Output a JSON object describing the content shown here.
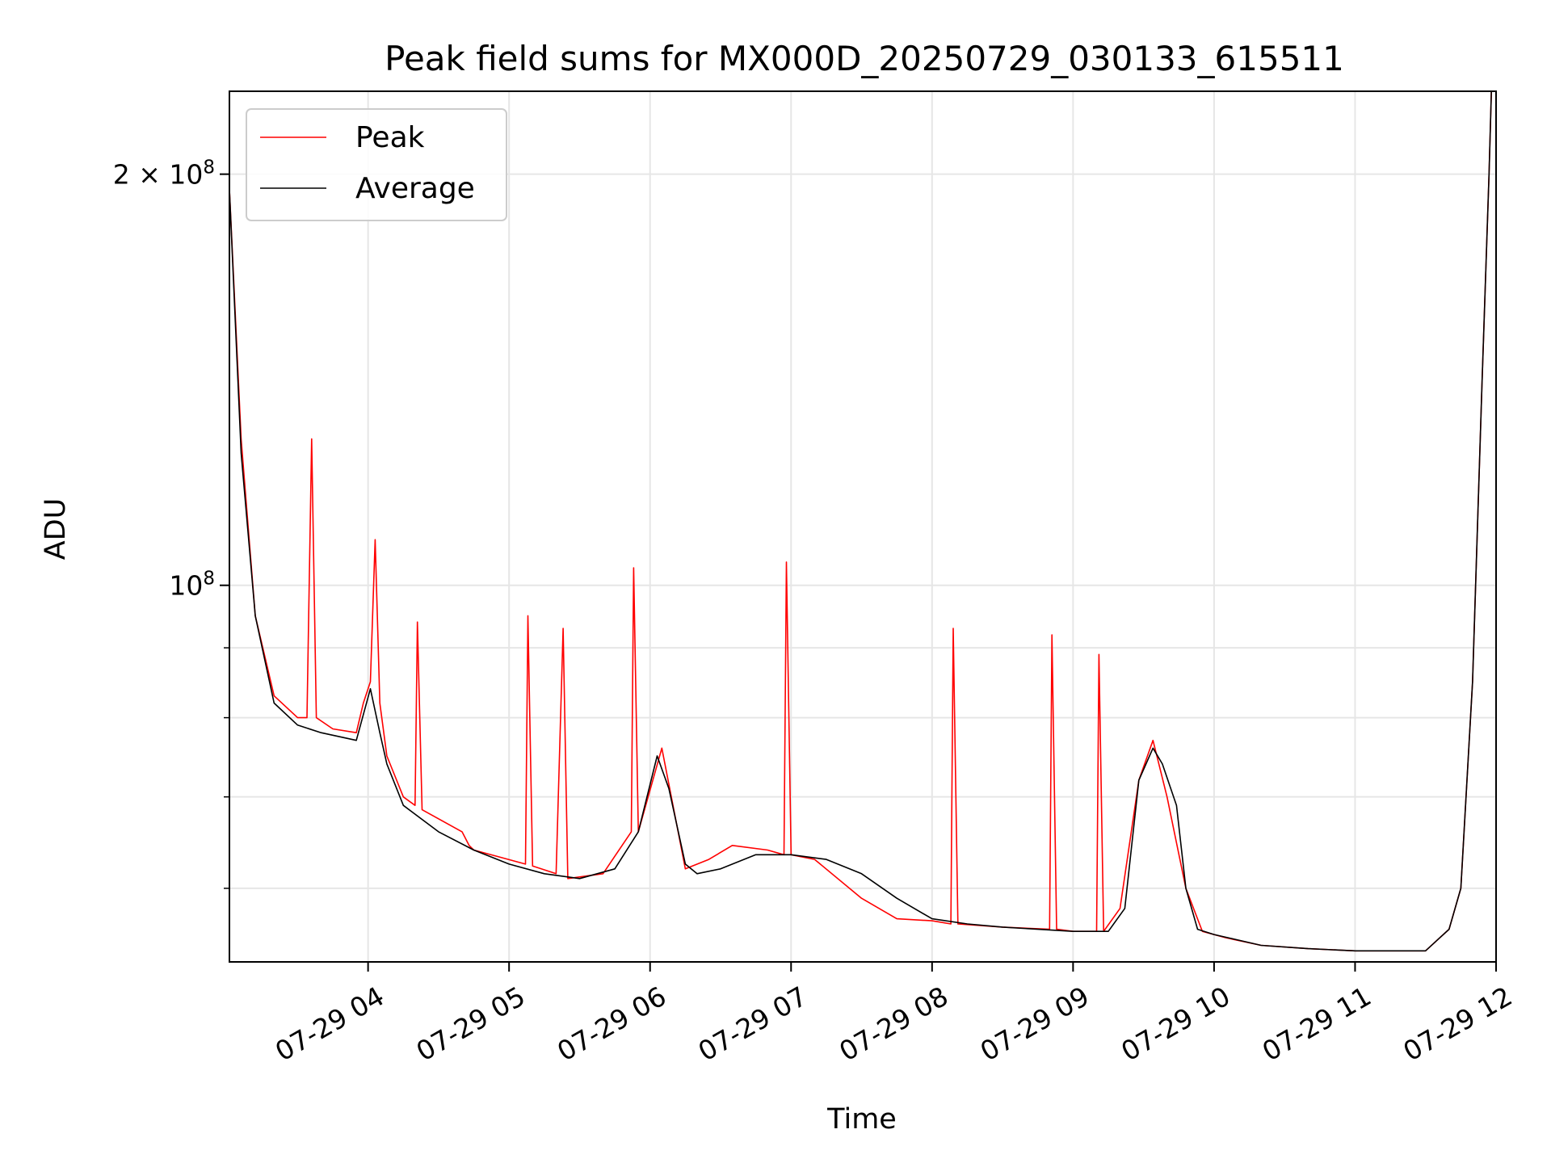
{
  "chart_data": {
    "type": "line",
    "title": "Peak field sums for MX000D_20250729_030133_615511",
    "xlabel": "Time",
    "ylabel": "ADU",
    "yscale": "log",
    "ylim": [
      53000000,
      230000000
    ],
    "xlim": [
      "2025-07-29 03:01:00",
      "2025-07-29 12:00:00"
    ],
    "grid": true,
    "legend_position": "upper-left",
    "x_tick_labels": [
      "07-29 04",
      "07-29 05",
      "07-29 06",
      "07-29 07",
      "07-29 08",
      "07-29 09",
      "07-29 10",
      "07-29 11",
      "07-29 12"
    ],
    "y_tick_labels": {
      "major": [
        {
          "value": 100000000,
          "base": "10",
          "exp": "8",
          "coef": ""
        },
        {
          "value": 200000000,
          "base": "10",
          "exp": "8",
          "coef": "2 × "
        }
      ],
      "minor": [
        60000000,
        70000000,
        80000000,
        90000000
      ]
    },
    "series": [
      {
        "name": "Peak",
        "color": "#ff0000",
        "x": [
          "2025-07-29 03:01",
          "2025-07-29 03:06",
          "2025-07-29 03:12",
          "2025-07-29 03:20",
          "2025-07-29 03:30",
          "2025-07-29 03:34",
          "2025-07-29 03:36",
          "2025-07-29 03:38",
          "2025-07-29 03:45",
          "2025-07-29 03:55",
          "2025-07-29 03:58",
          "2025-07-29 04:01",
          "2025-07-29 04:03",
          "2025-07-29 04:05",
          "2025-07-29 04:08",
          "2025-07-29 04:15",
          "2025-07-29 04:20",
          "2025-07-29 04:21",
          "2025-07-29 04:23",
          "2025-07-29 04:40",
          "2025-07-29 04:43",
          "2025-07-29 04:45",
          "2025-07-29 05:07",
          "2025-07-29 05:08",
          "2025-07-29 05:10",
          "2025-07-29 05:20",
          "2025-07-29 05:23",
          "2025-07-29 05:25",
          "2025-07-29 05:40",
          "2025-07-29 05:52",
          "2025-07-29 05:53",
          "2025-07-29 05:55",
          "2025-07-29 06:05",
          "2025-07-29 06:15",
          "2025-07-29 06:25",
          "2025-07-29 06:35",
          "2025-07-29 06:50",
          "2025-07-29 06:57",
          "2025-07-29 06:58",
          "2025-07-29 07:00",
          "2025-07-29 07:10",
          "2025-07-29 07:30",
          "2025-07-29 07:45",
          "2025-07-29 08:00",
          "2025-07-29 08:08",
          "2025-07-29 08:09",
          "2025-07-29 08:11",
          "2025-07-29 08:30",
          "2025-07-29 08:50",
          "2025-07-29 08:51",
          "2025-07-29 08:53",
          "2025-07-29 09:00",
          "2025-07-29 09:10",
          "2025-07-29 09:11",
          "2025-07-29 09:13",
          "2025-07-29 09:20",
          "2025-07-29 09:28",
          "2025-07-29 09:34",
          "2025-07-29 09:40",
          "2025-07-29 09:48",
          "2025-07-29 09:55",
          "2025-07-29 10:05",
          "2025-07-29 10:20",
          "2025-07-29 10:40",
          "2025-07-29 11:00",
          "2025-07-29 11:20",
          "2025-07-29 11:30",
          "2025-07-29 11:40",
          "2025-07-29 11:45",
          "2025-07-29 11:50",
          "2025-07-29 11:54",
          "2025-07-29 11:57",
          "2025-07-29 11:58"
        ],
        "values": [
          195000000,
          128000000,
          95000000,
          83000000,
          80000000,
          80000000,
          128000000,
          80000000,
          78500000,
          78000000,
          82000000,
          85000000,
          108000000,
          82000000,
          75000000,
          70000000,
          69000000,
          94000000,
          68500000,
          66000000,
          64500000,
          64000000,
          62500000,
          95000000,
          62300000,
          61500000,
          93000000,
          61000000,
          61500000,
          66000000,
          103000000,
          66000000,
          76000000,
          62000000,
          63000000,
          64500000,
          64000000,
          63500000,
          104000000,
          63500000,
          63000000,
          59000000,
          57000000,
          56800000,
          56500000,
          93000000,
          56500000,
          56200000,
          56000000,
          92000000,
          56000000,
          55800000,
          55800000,
          89000000,
          55800000,
          58000000,
          72000000,
          77000000,
          70000000,
          60000000,
          55800000,
          55200000,
          54500000,
          54200000,
          54000000,
          54000000,
          54000000,
          56000000,
          60000000,
          85000000,
          140000000,
          200000000,
          230000000
        ]
      },
      {
        "name": "Average",
        "color": "#000000",
        "x": [
          "2025-07-29 03:01",
          "2025-07-29 03:06",
          "2025-07-29 03:12",
          "2025-07-29 03:20",
          "2025-07-29 03:30",
          "2025-07-29 03:40",
          "2025-07-29 03:55",
          "2025-07-29 04:01",
          "2025-07-29 04:05",
          "2025-07-29 04:08",
          "2025-07-29 04:15",
          "2025-07-29 04:30",
          "2025-07-29 04:45",
          "2025-07-29 05:00",
          "2025-07-29 05:15",
          "2025-07-29 05:30",
          "2025-07-29 05:45",
          "2025-07-29 05:55",
          "2025-07-29 06:03",
          "2025-07-29 06:08",
          "2025-07-29 06:15",
          "2025-07-29 06:20",
          "2025-07-29 06:30",
          "2025-07-29 06:45",
          "2025-07-29 07:00",
          "2025-07-29 07:15",
          "2025-07-29 07:30",
          "2025-07-29 07:45",
          "2025-07-29 08:00",
          "2025-07-29 08:15",
          "2025-07-29 08:30",
          "2025-07-29 08:45",
          "2025-07-29 09:00",
          "2025-07-29 09:15",
          "2025-07-29 09:22",
          "2025-07-29 09:28",
          "2025-07-29 09:34",
          "2025-07-29 09:38",
          "2025-07-29 09:44",
          "2025-07-29 09:48",
          "2025-07-29 09:53",
          "2025-07-29 10:00",
          "2025-07-29 10:20",
          "2025-07-29 10:40",
          "2025-07-29 11:00",
          "2025-07-29 11:20",
          "2025-07-29 11:30",
          "2025-07-29 11:40",
          "2025-07-29 11:45",
          "2025-07-29 11:50",
          "2025-07-29 11:54",
          "2025-07-29 11:57",
          "2025-07-29 11:58"
        ],
        "values": [
          195000000,
          125000000,
          95000000,
          82000000,
          79000000,
          78000000,
          77000000,
          84000000,
          78000000,
          74000000,
          69000000,
          66000000,
          64000000,
          62500000,
          61500000,
          61000000,
          62000000,
          66000000,
          75000000,
          71000000,
          62500000,
          61500000,
          62000000,
          63500000,
          63500000,
          63000000,
          61500000,
          59000000,
          57000000,
          56500000,
          56200000,
          56000000,
          55800000,
          55800000,
          58000000,
          72000000,
          76000000,
          74000000,
          69000000,
          60000000,
          56000000,
          55500000,
          54500000,
          54200000,
          54000000,
          54000000,
          54000000,
          56000000,
          60000000,
          85000000,
          140000000,
          200000000,
          230000000
        ]
      }
    ]
  }
}
